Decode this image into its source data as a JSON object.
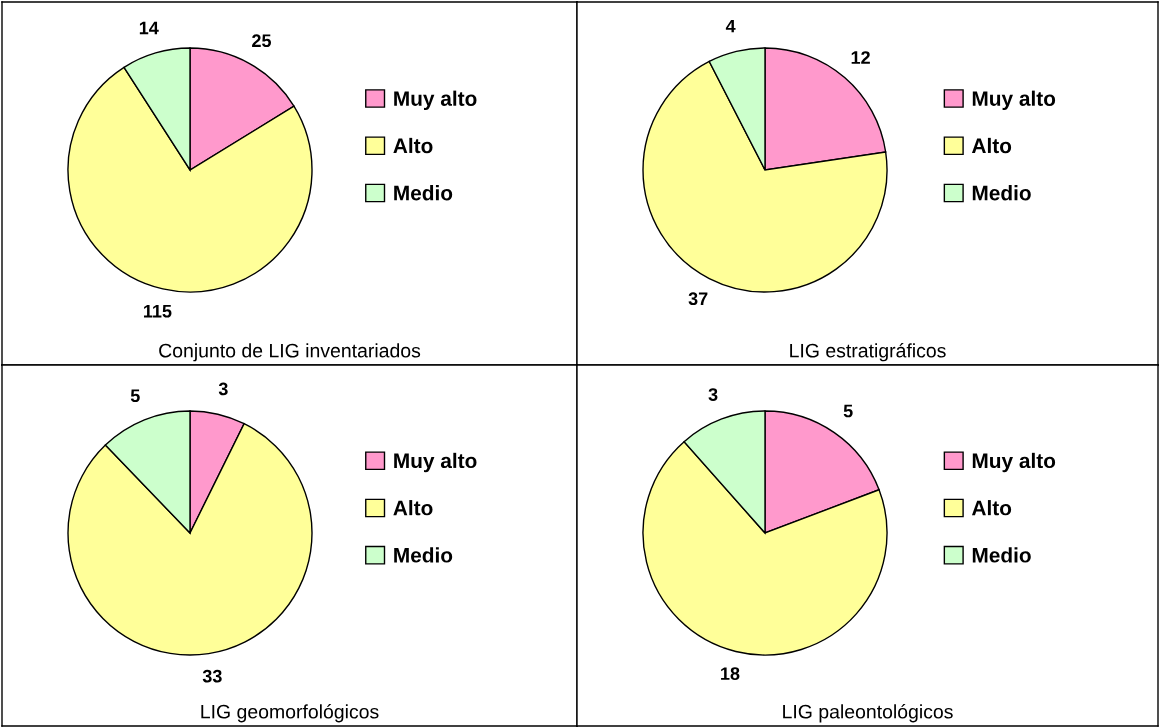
{
  "chart_data": [
    {
      "type": "pie",
      "title": "Conjunto de LIG inventariados",
      "categories": [
        "Muy alto",
        "Alto",
        "Medio"
      ],
      "values": [
        25,
        115,
        14
      ],
      "colors": [
        "#ff99cc",
        "#ffff99",
        "#ccffcc"
      ],
      "data_labels": true,
      "legend": "right"
    },
    {
      "type": "pie",
      "title": "LIG estratigráficos",
      "categories": [
        "Muy alto",
        "Alto",
        "Medio"
      ],
      "values": [
        12,
        37,
        4
      ],
      "colors": [
        "#ff99cc",
        "#ffff99",
        "#ccffcc"
      ],
      "data_labels": true,
      "legend": "right"
    },
    {
      "type": "pie",
      "title": "LIG geomorfológicos",
      "categories": [
        "Muy alto",
        "Alto",
        "Medio"
      ],
      "values": [
        3,
        33,
        5
      ],
      "colors": [
        "#ff99cc",
        "#ffff99",
        "#ccffcc"
      ],
      "data_labels": true,
      "legend": "right"
    },
    {
      "type": "pie",
      "title": "LIG paleontológicos",
      "categories": [
        "Muy alto",
        "Alto",
        "Medio"
      ],
      "values": [
        5,
        18,
        3
      ],
      "colors": [
        "#ff99cc",
        "#ffff99",
        "#ccffcc"
      ],
      "data_labels": true,
      "legend": "right"
    }
  ]
}
